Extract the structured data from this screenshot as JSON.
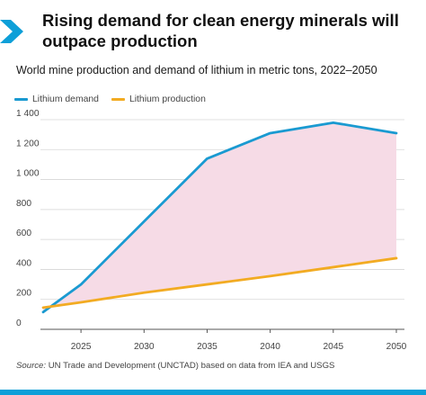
{
  "header": {
    "title": "Rising demand for clean energy minerals will outpace production",
    "subtitle": "World mine production and demand of lithium in metric tons, 2022–2050",
    "icon": "chevron-right-icon"
  },
  "colors": {
    "brand": "#0d9fd8",
    "demand": "#1a9ad1",
    "production": "#f2ab22",
    "gap_fill": "#f6dbe6",
    "grid": "#d6d6d6",
    "axis": "#555555"
  },
  "footer": {
    "source_label": "Source:",
    "source_text": "UN Trade and Development (UNCTAD) based on data from IEA and USGS"
  },
  "chart_data": {
    "type": "line",
    "xlabel": "",
    "ylabel": "",
    "xlim": [
      2022,
      2050
    ],
    "ylim": [
      0,
      1400
    ],
    "x_ticks": [
      2025,
      2030,
      2035,
      2040,
      2045,
      2050
    ],
    "x_tick_labels": [
      "2025",
      "2030",
      "2035",
      "2040",
      "2045",
      "2050"
    ],
    "y_ticks": [
      0,
      200,
      400,
      600,
      800,
      1000,
      1200,
      1400
    ],
    "y_tick_labels": [
      "0",
      "200",
      "400",
      "600",
      "800",
      "1 000",
      "1 200",
      "1 400"
    ],
    "grid": true,
    "legend_position": "top-left",
    "shaded_region": "between Lithium demand and Lithium production",
    "series": [
      {
        "name": "Lithium demand",
        "x": [
          2022,
          2025,
          2030,
          2035,
          2040,
          2045,
          2050
        ],
        "values": [
          115,
          300,
          720,
          1140,
          1310,
          1380,
          1310
        ]
      },
      {
        "name": "Lithium production",
        "x": [
          2022,
          2025,
          2030,
          2035,
          2040,
          2045,
          2050
        ],
        "values": [
          145,
          180,
          245,
          300,
          355,
          415,
          475
        ]
      }
    ]
  }
}
